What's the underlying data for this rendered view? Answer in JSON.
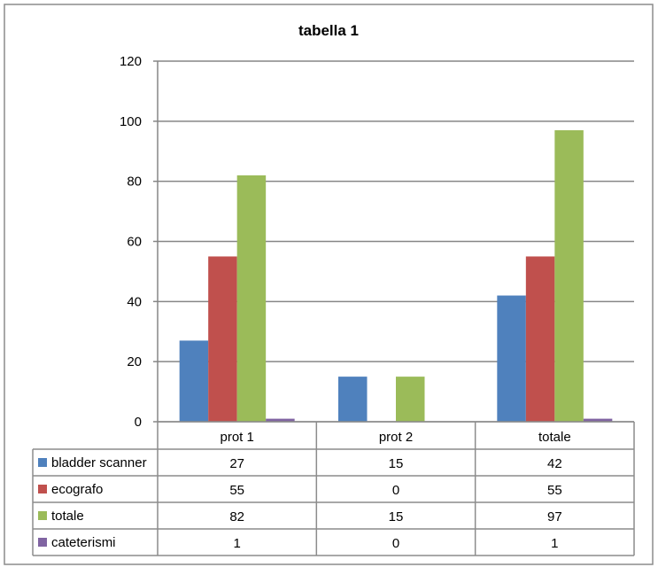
{
  "chart_data": {
    "type": "bar",
    "title": "tabella 1",
    "categories": [
      "prot 1",
      "prot 2",
      "totale"
    ],
    "series": [
      {
        "name": "bladder scanner",
        "color": "#4f81bd",
        "values": [
          27,
          15,
          42
        ]
      },
      {
        "name": "ecografo",
        "color": "#c0504d",
        "values": [
          55,
          0,
          55
        ]
      },
      {
        "name": "totale",
        "color": "#9bbb59",
        "values": [
          82,
          15,
          97
        ]
      },
      {
        "name": "cateterismi",
        "color": "#8064a2",
        "values": [
          1,
          0,
          1
        ]
      }
    ],
    "ylim": [
      0,
      120
    ],
    "yticks": [
      0,
      20,
      40,
      60,
      80,
      100,
      120
    ],
    "grid": true,
    "legend": "data-table-below"
  }
}
